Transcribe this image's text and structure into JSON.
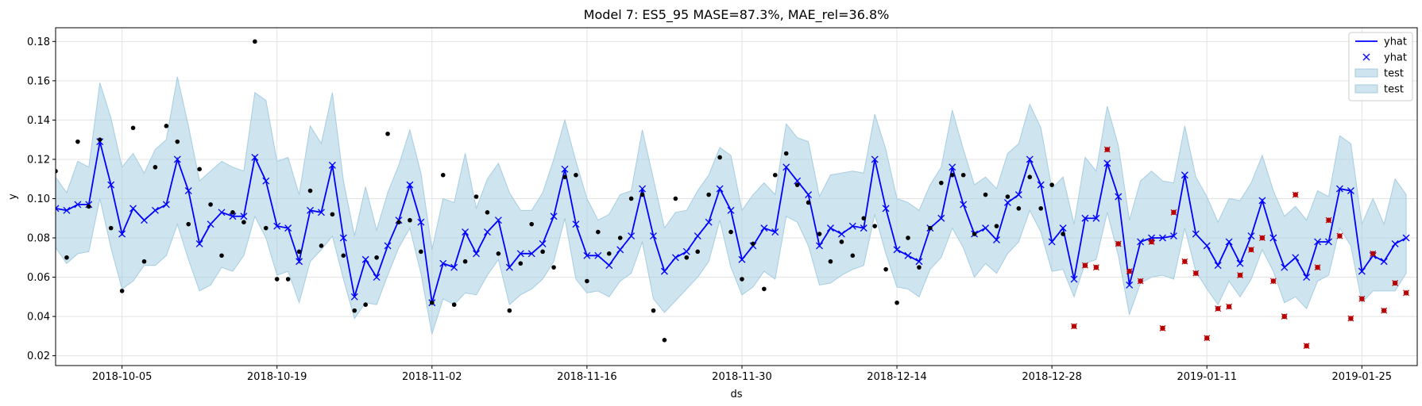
{
  "chart_data": {
    "type": "line",
    "title": "Model 7: ES5_95 MASE=87.3%, MAE_rel=36.8%",
    "xlabel": "ds",
    "ylabel": "y",
    "x_start": "2018-09-29",
    "x_step_days": 1,
    "xlim": [
      "2018-09-29",
      "2019-01-30"
    ],
    "ylim": [
      0.015,
      0.187
    ],
    "grid": true,
    "legend_position": "top-right",
    "x_ticks": [
      "2018-10-05",
      "2018-10-19",
      "2018-11-02",
      "2018-11-16",
      "2018-11-30",
      "2018-12-14",
      "2018-12-28",
      "2019-01-11",
      "2019-01-25"
    ],
    "y_ticks": [
      "0.02",
      "0.04",
      "0.06",
      "0.08",
      "0.10",
      "0.12",
      "0.14",
      "0.16",
      "0.18"
    ],
    "legend": [
      "yhat",
      "yhat",
      "test",
      "test"
    ],
    "colors": {
      "forecast": "#0000ff",
      "band_fill": "#a6cde2",
      "band_edge": "#a6cde2",
      "train_points": "#000000",
      "test_points": "#b80000"
    },
    "yhat": [
      0.095,
      0.094,
      0.097,
      0.097,
      0.129,
      0.107,
      0.082,
      0.095,
      0.089,
      0.094,
      0.097,
      0.12,
      0.104,
      0.077,
      0.087,
      0.093,
      0.091,
      0.091,
      0.121,
      0.109,
      0.086,
      0.085,
      0.068,
      0.094,
      0.093,
      0.117,
      0.08,
      0.05,
      0.069,
      0.06,
      0.076,
      0.089,
      0.107,
      0.088,
      0.047,
      0.067,
      0.065,
      0.083,
      0.072,
      0.083,
      0.089,
      0.065,
      0.072,
      0.072,
      0.077,
      0.091,
      0.115,
      0.087,
      0.071,
      0.071,
      0.066,
      0.074,
      0.081,
      0.105,
      0.081,
      0.063,
      0.07,
      0.073,
      0.081,
      0.088,
      0.105,
      0.094,
      0.069,
      0.076,
      0.085,
      0.083,
      0.116,
      0.109,
      0.102,
      0.076,
      0.085,
      0.082,
      0.086,
      0.085,
      0.12,
      0.095,
      0.074,
      0.071,
      0.068,
      0.085,
      0.09,
      0.116,
      0.097,
      0.082,
      0.085,
      0.079,
      0.098,
      0.102,
      0.12,
      0.107,
      0.078,
      0.085,
      0.059,
      0.09,
      0.09,
      0.118,
      0.101,
      0.056,
      0.078,
      0.08,
      0.08,
      0.081,
      0.112,
      0.082,
      0.076,
      0.066,
      0.078,
      0.067,
      0.081,
      0.099,
      0.08,
      0.065,
      0.07,
      0.06,
      0.078,
      0.078,
      0.105,
      0.104,
      0.063,
      0.071,
      0.068,
      0.077,
      0.08
    ],
    "band_upper": [
      0.111,
      0.103,
      0.119,
      0.116,
      0.159,
      0.141,
      0.116,
      0.123,
      0.113,
      0.125,
      0.13,
      0.162,
      0.137,
      0.109,
      0.114,
      0.119,
      0.116,
      0.114,
      0.154,
      0.15,
      0.119,
      0.121,
      0.102,
      0.137,
      0.128,
      0.154,
      0.109,
      0.081,
      0.106,
      0.084,
      0.103,
      0.117,
      0.135,
      0.113,
      0.074,
      0.1,
      0.098,
      0.123,
      0.095,
      0.11,
      0.118,
      0.103,
      0.094,
      0.094,
      0.103,
      0.12,
      0.14,
      0.119,
      0.1,
      0.089,
      0.092,
      0.102,
      0.104,
      0.135,
      0.11,
      0.085,
      0.093,
      0.094,
      0.104,
      0.112,
      0.126,
      0.122,
      0.094,
      0.102,
      0.108,
      0.102,
      0.138,
      0.131,
      0.129,
      0.101,
      0.112,
      0.113,
      0.114,
      0.113,
      0.143,
      0.125,
      0.1,
      0.098,
      0.094,
      0.107,
      0.116,
      0.145,
      0.125,
      0.107,
      0.111,
      0.105,
      0.123,
      0.128,
      0.148,
      0.136,
      0.105,
      0.111,
      0.087,
      0.121,
      0.114,
      0.147,
      0.127,
      0.089,
      0.109,
      0.114,
      0.109,
      0.108,
      0.137,
      0.111,
      0.101,
      0.088,
      0.1,
      0.099,
      0.108,
      0.122,
      0.104,
      0.091,
      0.096,
      0.089,
      0.104,
      0.101,
      0.132,
      0.128,
      0.087,
      0.1,
      0.087,
      0.11,
      0.102
    ],
    "band_lower": [
      0.075,
      0.067,
      0.072,
      0.073,
      0.1,
      0.075,
      0.054,
      0.058,
      0.066,
      0.066,
      0.071,
      0.087,
      0.069,
      0.053,
      0.056,
      0.065,
      0.063,
      0.071,
      0.091,
      0.08,
      0.061,
      0.063,
      0.047,
      0.068,
      0.074,
      0.081,
      0.059,
      0.039,
      0.047,
      0.046,
      0.061,
      0.075,
      0.085,
      0.062,
      0.031,
      0.049,
      0.046,
      0.052,
      0.051,
      0.061,
      0.069,
      0.046,
      0.051,
      0.054,
      0.059,
      0.068,
      0.09,
      0.059,
      0.052,
      0.053,
      0.05,
      0.058,
      0.062,
      0.078,
      0.049,
      0.042,
      0.048,
      0.054,
      0.06,
      0.068,
      0.089,
      0.065,
      0.051,
      0.055,
      0.063,
      0.059,
      0.091,
      0.088,
      0.076,
      0.056,
      0.057,
      0.061,
      0.064,
      0.066,
      0.092,
      0.072,
      0.055,
      0.054,
      0.05,
      0.064,
      0.07,
      0.085,
      0.075,
      0.06,
      0.067,
      0.062,
      0.072,
      0.078,
      0.094,
      0.083,
      0.063,
      0.064,
      0.05,
      0.067,
      0.069,
      0.093,
      0.071,
      0.041,
      0.057,
      0.06,
      0.061,
      0.059,
      0.085,
      0.063,
      0.054,
      0.046,
      0.058,
      0.05,
      0.059,
      0.074,
      0.063,
      0.047,
      0.05,
      0.044,
      0.058,
      0.061,
      0.085,
      0.076,
      0.047,
      0.053,
      0.053,
      0.053,
      0.062
    ],
    "train_points": [
      [
        0,
        0.114
      ],
      [
        1,
        0.07
      ],
      [
        2,
        0.129
      ],
      [
        3,
        0.096
      ],
      [
        4,
        0.13
      ],
      [
        5,
        0.085
      ],
      [
        6,
        0.053
      ],
      [
        7,
        0.136
      ],
      [
        8,
        0.068
      ],
      [
        9,
        0.116
      ],
      [
        10,
        0.137
      ],
      [
        11,
        0.129
      ],
      [
        12,
        0.087
      ],
      [
        13,
        0.115
      ],
      [
        14,
        0.097
      ],
      [
        15,
        0.071
      ],
      [
        16,
        0.093
      ],
      [
        17,
        0.088
      ],
      [
        18,
        0.18
      ],
      [
        19,
        0.085
      ],
      [
        20,
        0.059
      ],
      [
        21,
        0.059
      ],
      [
        22,
        0.073
      ],
      [
        23,
        0.104
      ],
      [
        24,
        0.076
      ],
      [
        25,
        0.092
      ],
      [
        26,
        0.071
      ],
      [
        27,
        0.043
      ],
      [
        28,
        0.046
      ],
      [
        29,
        0.07
      ],
      [
        30,
        0.133
      ],
      [
        31,
        0.088
      ],
      [
        32,
        0.089
      ],
      [
        33,
        0.073
      ],
      [
        34,
        0.047
      ],
      [
        35,
        0.112
      ],
      [
        36,
        0.046
      ],
      [
        37,
        0.068
      ],
      [
        38,
        0.101
      ],
      [
        39,
        0.093
      ],
      [
        40,
        0.072
      ],
      [
        41,
        0.043
      ],
      [
        42,
        0.067
      ],
      [
        43,
        0.087
      ],
      [
        44,
        0.073
      ],
      [
        45,
        0.065
      ],
      [
        46,
        0.111
      ],
      [
        47,
        0.112
      ],
      [
        48,
        0.058
      ],
      [
        49,
        0.083
      ],
      [
        50,
        0.072
      ],
      [
        51,
        0.08
      ],
      [
        52,
        0.1
      ],
      [
        53,
        0.102
      ],
      [
        54,
        0.043
      ],
      [
        55,
        0.028
      ],
      [
        56,
        0.1
      ],
      [
        57,
        0.07
      ],
      [
        58,
        0.073
      ],
      [
        59,
        0.102
      ],
      [
        60,
        0.121
      ],
      [
        61,
        0.083
      ],
      [
        62,
        0.059
      ],
      [
        63,
        0.077
      ],
      [
        64,
        0.054
      ],
      [
        65,
        0.112
      ],
      [
        66,
        0.123
      ],
      [
        67,
        0.107
      ],
      [
        68,
        0.098
      ],
      [
        69,
        0.082
      ],
      [
        70,
        0.068
      ],
      [
        71,
        0.078
      ],
      [
        72,
        0.071
      ],
      [
        73,
        0.09
      ],
      [
        74,
        0.086
      ],
      [
        75,
        0.064
      ],
      [
        76,
        0.047
      ],
      [
        77,
        0.08
      ],
      [
        78,
        0.065
      ],
      [
        79,
        0.085
      ],
      [
        80,
        0.108
      ],
      [
        81,
        0.112
      ],
      [
        82,
        0.112
      ],
      [
        83,
        0.082
      ],
      [
        84,
        0.102
      ],
      [
        85,
        0.086
      ],
      [
        86,
        0.101
      ],
      [
        87,
        0.095
      ],
      [
        88,
        0.111
      ],
      [
        89,
        0.095
      ],
      [
        90,
        0.107
      ],
      [
        91,
        0.082
      ]
    ],
    "test_points": [
      [
        92,
        0.035
      ],
      [
        93,
        0.066
      ],
      [
        94,
        0.065
      ],
      [
        95,
        0.125
      ],
      [
        96,
        0.077
      ],
      [
        97,
        0.063
      ],
      [
        98,
        0.058
      ],
      [
        99,
        0.078
      ],
      [
        100,
        0.034
      ],
      [
        101,
        0.093
      ],
      [
        102,
        0.068
      ],
      [
        103,
        0.062
      ],
      [
        104,
        0.029
      ],
      [
        105,
        0.044
      ],
      [
        106,
        0.045
      ],
      [
        107,
        0.061
      ],
      [
        108,
        0.074
      ],
      [
        109,
        0.08
      ],
      [
        110,
        0.058
      ],
      [
        111,
        0.04
      ],
      [
        112,
        0.102
      ],
      [
        113,
        0.025
      ],
      [
        114,
        0.065
      ],
      [
        115,
        0.089
      ],
      [
        116,
        0.081
      ],
      [
        117,
        0.039
      ],
      [
        118,
        0.049
      ],
      [
        119,
        0.072
      ],
      [
        120,
        0.043
      ],
      [
        121,
        0.057
      ],
      [
        122,
        0.052
      ]
    ]
  }
}
